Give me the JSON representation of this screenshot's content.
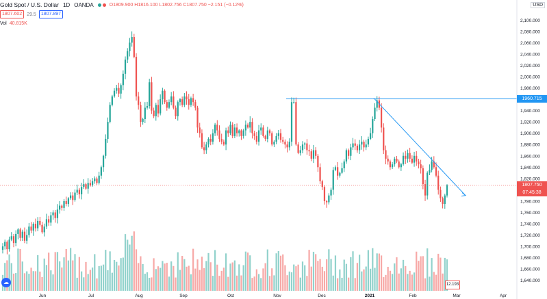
{
  "header": {
    "symbol": "Gold Spot / U.S. Dollar",
    "interval": "1D",
    "exchange": "OANDA",
    "ohlc": "O1809.900 H1816.100 L1802.756 C1807.750 −2.151 (−0.12%)",
    "sell_price": "1807.602",
    "spread": "29.5",
    "buy_price": "1807.897",
    "status_colors": [
      "#26a69a",
      "#ef5350"
    ]
  },
  "volume_label": {
    "name": "Vol",
    "value": "40.815K"
  },
  "currency": "USD",
  "price_tags": {
    "resistance": "1960.715",
    "current": "1807.750",
    "countdown": "07:45:38",
    "volume": "12.193"
  },
  "colors": {
    "up": "#26a69a",
    "down": "#ef5350",
    "trendline": "#2196f3",
    "tag_blue": "#2196f3"
  },
  "chart_data": {
    "type": "candlestick",
    "y_axis": {
      "min": 1630,
      "max": 2110,
      "ticks": [
        "2,100.000",
        "2,080.000",
        "2,060.000",
        "2,040.000",
        "2,020.000",
        "2,000.000",
        "1,980.000",
        "1,960.000",
        "1,940.000",
        "1,920.000",
        "1,900.000",
        "1,880.000",
        "1,860.000",
        "1,840.000",
        "1,820.000",
        "1,800.000",
        "1,780.000",
        "1,760.000",
        "1,740.000",
        "1,720.000",
        "1,700.000",
        "1,680.000",
        "1,660.000",
        "1,640.000"
      ]
    },
    "x_axis_labels": [
      "Jun",
      "Jul",
      "Aug",
      "Sep",
      "Oct",
      "Nov",
      "Dec",
      "2021",
      "Feb",
      "Mar",
      "Apr"
    ],
    "closes": [
      1700,
      1708,
      1695,
      1712,
      1718,
      1706,
      1722,
      1730,
      1715,
      1726,
      1710,
      1720,
      1735,
      1728,
      1740,
      1732,
      1745,
      1738,
      1725,
      1735,
      1748,
      1742,
      1755,
      1760,
      1750,
      1765,
      1772,
      1768,
      1780,
      1775,
      1785,
      1790,
      1782,
      1795,
      1800,
      1792,
      1805,
      1810,
      1802,
      1812,
      1808,
      1815,
      1820,
      1812,
      1825,
      1840,
      1860,
      1890,
      1920,
      1950,
      1965,
      1975,
      1980,
      1970,
      1985,
      2005,
      2030,
      2045,
      2060,
      2070,
      2035,
      1965,
      1950,
      1920,
      1925,
      1945,
      1948,
      1990,
      1940,
      1930,
      1950,
      1935,
      1960,
      1975,
      1955,
      1945,
      1955,
      1965,
      1945,
      1930,
      1955,
      1960,
      1950,
      1965,
      1960,
      1950,
      1962,
      1955,
      1945,
      1910,
      1900,
      1875,
      1870,
      1880,
      1890,
      1885,
      1900,
      1915,
      1905,
      1890,
      1885,
      1880,
      1905,
      1900,
      1915,
      1895,
      1910,
      1900,
      1905,
      1895,
      1905,
      1915,
      1910,
      1920,
      1900,
      1895,
      1885,
      1905,
      1910,
      1895,
      1890,
      1905,
      1900,
      1880,
      1885,
      1895,
      1900,
      1888,
      1885,
      1880,
      1875,
      1885,
      1955,
      1955,
      1880,
      1865,
      1870,
      1880,
      1882,
      1870,
      1868,
      1855,
      1870,
      1860,
      1840,
      1815,
      1805,
      1780,
      1778,
      1790,
      1800,
      1835,
      1840,
      1825,
      1830,
      1838,
      1850,
      1870,
      1860,
      1875,
      1882,
      1878,
      1870,
      1880,
      1885,
      1875,
      1880,
      1890,
      1900,
      1925,
      1945,
      1958,
      1945,
      1910,
      1870,
      1855,
      1850,
      1840,
      1845,
      1855,
      1850,
      1840,
      1845,
      1860,
      1855,
      1865,
      1855,
      1848,
      1860,
      1850,
      1845,
      1838,
      1810,
      1790,
      1830,
      1835,
      1850,
      1840,
      1825,
      1800,
      1785,
      1775,
      1790,
      1808
    ]
  }
}
